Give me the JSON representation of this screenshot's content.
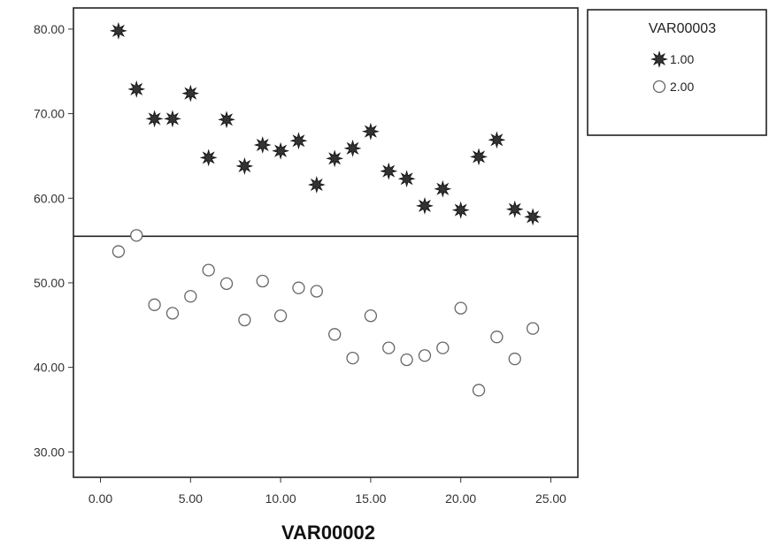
{
  "chart_data": {
    "type": "scatter",
    "xlabel": "VAR00002",
    "ylabel": "",
    "xlim": [
      -1.5,
      26.5
    ],
    "ylim": [
      27.0,
      82.5
    ],
    "x_ticks": [
      0,
      5,
      10,
      15,
      20,
      25
    ],
    "x_tick_labels": [
      "0.00",
      "5.00",
      "10.00",
      "15.00",
      "20.00",
      "25.00"
    ],
    "y_ticks": [
      30,
      40,
      50,
      60,
      70,
      80
    ],
    "y_tick_labels": [
      "30.00",
      "40.00",
      "50.00",
      "60.00",
      "70.00",
      "80.00"
    ],
    "reference_line_y": 55.5,
    "grid": false,
    "legend": {
      "title": "VAR00003",
      "placement": "right"
    },
    "series": [
      {
        "name": "1.00",
        "marker": "star",
        "color": "#333333",
        "x": [
          1,
          2,
          3,
          4,
          5,
          6,
          7,
          8,
          9,
          10,
          11,
          12,
          13,
          14,
          15,
          16,
          17,
          18,
          19,
          20,
          21,
          22,
          23,
          24
        ],
        "y": [
          79.8,
          72.9,
          69.4,
          69.4,
          72.4,
          64.8,
          69.3,
          63.8,
          66.3,
          65.6,
          66.8,
          61.6,
          64.7,
          65.9,
          67.9,
          63.2,
          62.3,
          59.1,
          61.1,
          58.6,
          64.9,
          66.9,
          58.7,
          57.8
        ]
      },
      {
        "name": "2.00",
        "marker": "circle",
        "color": "#666666",
        "x": [
          1,
          2,
          3,
          4,
          5,
          6,
          7,
          8,
          9,
          10,
          11,
          12,
          13,
          14,
          15,
          16,
          17,
          18,
          19,
          20,
          21,
          22,
          23,
          24
        ],
        "y": [
          53.7,
          55.6,
          47.4,
          46.4,
          48.4,
          51.5,
          49.9,
          45.6,
          50.2,
          46.1,
          49.4,
          49.0,
          43.9,
          41.1,
          46.1,
          42.3,
          40.9,
          41.4,
          42.3,
          47.0,
          37.3,
          43.6,
          41.0,
          44.6
        ]
      }
    ]
  }
}
